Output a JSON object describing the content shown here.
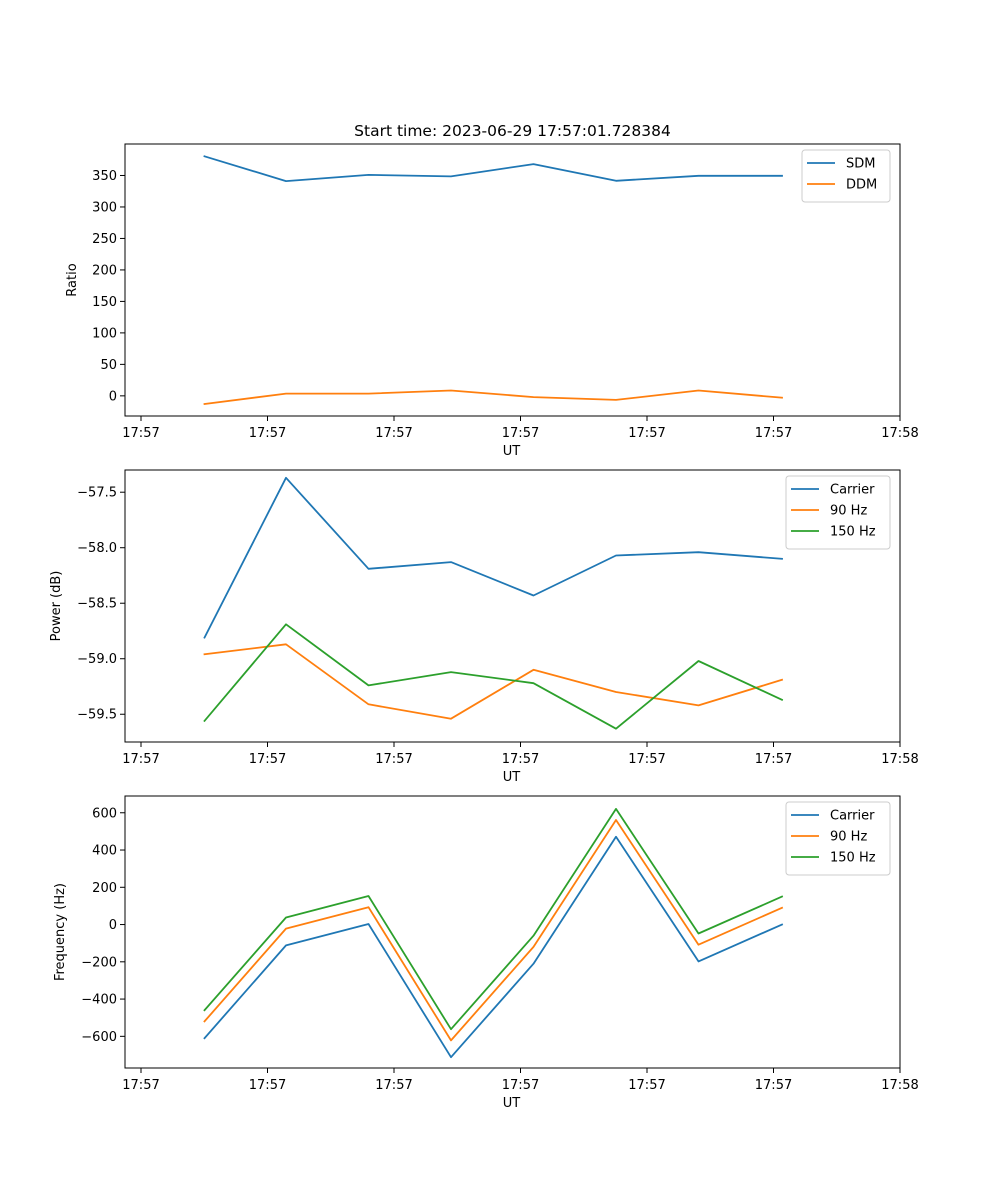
{
  "chart_data": [
    {
      "type": "line",
      "title": "Start time: 2023-06-29 17:57:01.728384",
      "xlabel": "UT",
      "ylabel": "Ratio",
      "x_tick_labels": [
        "17:57",
        "17:57",
        "17:57",
        "17:57",
        "17:57",
        "17:57",
        "17:58"
      ],
      "y_ticks": [
        0,
        50,
        100,
        150,
        200,
        250,
        300,
        350
      ],
      "ylim": [
        -32,
        400
      ],
      "legend_position": "top-right",
      "series": [
        {
          "name": "SDM",
          "color": "#1f77b4",
          "values": [
            380.5,
            341,
            351,
            348.5,
            368,
            341.5,
            349.5,
            349.5
          ]
        },
        {
          "name": "DDM",
          "color": "#ff7f0e",
          "values": [
            -13,
            3.5,
            3.5,
            8.5,
            -2,
            -6.5,
            8.5,
            -3
          ]
        }
      ]
    },
    {
      "type": "line",
      "title": "",
      "xlabel": "UT",
      "ylabel": "Power (dB)",
      "x_tick_labels": [
        "17:57",
        "17:57",
        "17:57",
        "17:57",
        "17:57",
        "17:57",
        "17:58"
      ],
      "y_ticks": [
        -59.5,
        -59.0,
        -58.5,
        -58.0,
        -57.5
      ],
      "y_tick_labels": [
        "−59.5",
        "−59.0",
        "−58.5",
        "−58.0",
        "−57.5"
      ],
      "ylim": [
        -59.75,
        -57.3
      ],
      "legend_position": "top-right",
      "series": [
        {
          "name": "Carrier",
          "color": "#1f77b4",
          "values": [
            -58.81,
            -57.37,
            -58.19,
            -58.13,
            -58.43,
            -58.07,
            -58.04,
            -58.1
          ]
        },
        {
          "name": "90 Hz",
          "color": "#ff7f0e",
          "values": [
            -58.96,
            -58.87,
            -59.41,
            -59.54,
            -59.1,
            -59.3,
            -59.42,
            -59.19
          ]
        },
        {
          "name": "150 Hz",
          "color": "#2ca02c",
          "values": [
            -59.56,
            -58.69,
            -59.24,
            -59.12,
            -59.22,
            -59.63,
            -59.02,
            -59.37
          ]
        }
      ]
    },
    {
      "type": "line",
      "title": "",
      "xlabel": "UT",
      "ylabel": "Frequency (Hz)",
      "x_tick_labels": [
        "17:57",
        "17:57",
        "17:57",
        "17:57",
        "17:57",
        "17:57",
        "17:58"
      ],
      "y_ticks": [
        -600,
        -400,
        -200,
        0,
        200,
        400,
        600
      ],
      "y_tick_labels": [
        "−600",
        "−400",
        "−200",
        "0",
        "200",
        "400",
        "600"
      ],
      "ylim": [
        -770,
        690
      ],
      "legend_position": "top-right",
      "series": [
        {
          "name": "Carrier",
          "color": "#1f77b4",
          "values": [
            -610,
            -112,
            3,
            -712,
            -210,
            471,
            -198,
            0
          ]
        },
        {
          "name": "90 Hz",
          "color": "#ff7f0e",
          "values": [
            -520,
            -22,
            93,
            -622,
            -120,
            561,
            -108,
            90
          ]
        },
        {
          "name": "150 Hz",
          "color": "#2ca02c",
          "values": [
            -460,
            38,
            153,
            -562,
            -60,
            621,
            -48,
            150
          ]
        }
      ]
    }
  ]
}
